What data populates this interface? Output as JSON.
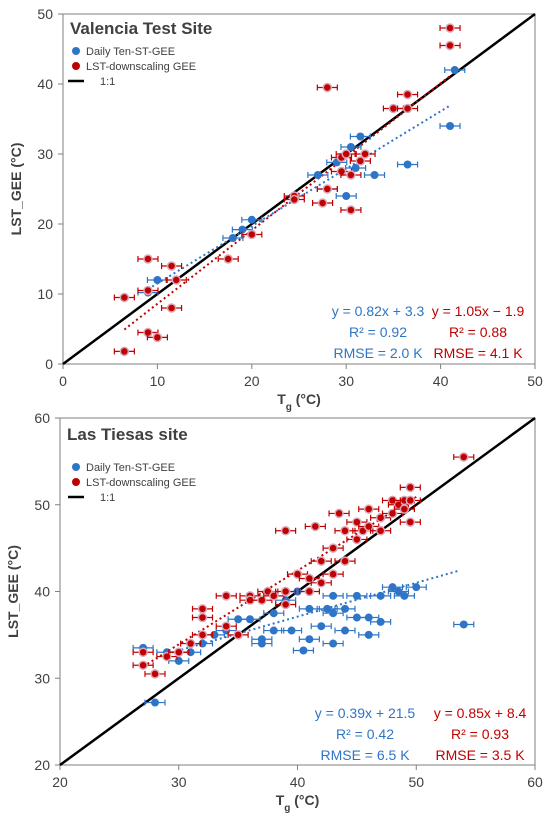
{
  "chart_data": [
    {
      "type": "scatter",
      "title": "Valencia Test Site",
      "xlabel": "T",
      "xlabel_sub": "g",
      "xlabel_unit": " (°C)",
      "ylabel": "LST_GEE (°C)",
      "xlim": [
        0,
        50
      ],
      "ylim": [
        0,
        50
      ],
      "xticks": [
        0,
        10,
        20,
        30,
        40,
        50
      ],
      "yticks": [
        0,
        10,
        20,
        30,
        40,
        50
      ],
      "legend_position": "top-left",
      "one_to_one_label": "1:1",
      "series": [
        {
          "name": "Daily Ten-ST-GEE",
          "color": "#2e75c8",
          "points": [
            [
              10,
              12
            ],
            [
              9,
              10.2
            ],
            [
              18,
              18
            ],
            [
              19,
              19.2
            ],
            [
              20,
              20.6
            ],
            [
              27,
              27
            ],
            [
              28,
              25
            ],
            [
              29,
              28.8
            ],
            [
              30,
              24
            ],
            [
              30.5,
              31
            ],
            [
              31,
              28
            ],
            [
              31.5,
              32.5
            ],
            [
              33,
              27
            ],
            [
              36.5,
              28.5
            ],
            [
              41,
              34
            ],
            [
              41.5,
              42
            ]
          ],
          "fit": {
            "slope": 0.82,
            "intercept": 3.3,
            "x_range": [
              9,
              41
            ]
          }
        },
        {
          "name": "LST-downscaling GEE",
          "color": "#c00000",
          "points": [
            [
              6.5,
              9.5
            ],
            [
              6.5,
              1.8
            ],
            [
              9,
              15
            ],
            [
              9,
              10.5
            ],
            [
              9,
              4.5
            ],
            [
              10,
              3.8
            ],
            [
              11.5,
              14
            ],
            [
              11.5,
              8
            ],
            [
              12,
              12
            ],
            [
              17.5,
              15
            ],
            [
              20,
              18.5
            ],
            [
              24.5,
              24
            ],
            [
              24.5,
              23.5
            ],
            [
              27.5,
              23
            ],
            [
              28,
              39.5
            ],
            [
              28,
              25
            ],
            [
              29.5,
              29.5
            ],
            [
              29.5,
              27.5
            ],
            [
              30,
              30
            ],
            [
              30.5,
              22
            ],
            [
              30.5,
              27
            ],
            [
              31.5,
              29
            ],
            [
              32,
              30
            ],
            [
              35,
              36.5
            ],
            [
              36.5,
              36.5
            ],
            [
              36.5,
              38.5
            ],
            [
              41,
              45.5
            ],
            [
              41,
              48
            ]
          ],
          "fit": {
            "slope": 1.05,
            "intercept": -1.9,
            "x_range": [
              6.5,
              41
            ]
          }
        }
      ],
      "stats": [
        {
          "eq": "y = 0.82x + 3.3",
          "r2": "R² = 0.92",
          "rmse": "RMSE = 2.0 K",
          "color": "#2e75c8"
        },
        {
          "eq": "y = 1.05x − 1.9",
          "r2": "R² = 0.88",
          "rmse": "RMSE = 4.1 K",
          "color": "#c00000"
        }
      ]
    },
    {
      "type": "scatter",
      "title": "Las Tiesas site",
      "xlabel": "T",
      "xlabel_sub": "g",
      "xlabel_unit": " (°C)",
      "ylabel": "LST_GEE (°C)",
      "xlim": [
        20,
        60
      ],
      "ylim": [
        20,
        60
      ],
      "xticks": [
        20,
        30,
        40,
        50,
        60
      ],
      "yticks": [
        20,
        30,
        40,
        50,
        60
      ],
      "legend_position": "top-left",
      "one_to_one_label": "1:1",
      "series": [
        {
          "name": "Daily Ten-ST-GEE",
          "color": "#2e75c8",
          "points": [
            [
              27,
              33.5
            ],
            [
              28,
              27.2
            ],
            [
              29,
              33
            ],
            [
              30,
              32
            ],
            [
              31,
              33
            ],
            [
              32,
              34
            ],
            [
              33,
              35
            ],
            [
              34,
              35.5
            ],
            [
              35,
              36.8
            ],
            [
              36,
              36.8
            ],
            [
              37,
              34.5
            ],
            [
              37,
              34
            ],
            [
              38,
              35.5
            ],
            [
              38,
              37.5
            ],
            [
              39,
              39
            ],
            [
              39.5,
              35.5
            ],
            [
              40,
              40
            ],
            [
              40.5,
              33.2
            ],
            [
              41,
              38
            ],
            [
              41,
              34.5
            ],
            [
              42,
              36
            ],
            [
              42.5,
              38
            ],
            [
              43,
              34
            ],
            [
              43,
              37.5
            ],
            [
              43,
              39.5
            ],
            [
              44,
              35.5
            ],
            [
              44,
              38
            ],
            [
              45,
              39.5
            ],
            [
              45,
              37
            ],
            [
              46,
              37
            ],
            [
              46,
              35
            ],
            [
              47,
              39.5
            ],
            [
              47,
              36.5
            ],
            [
              48,
              40.5
            ],
            [
              48.5,
              40
            ],
            [
              49,
              39.5
            ],
            [
              50,
              40.5
            ],
            [
              54,
              36.2
            ]
          ],
          "fit": {
            "slope": 0.39,
            "intercept": 21.5,
            "x_range": [
              29,
              53.5
            ]
          }
        },
        {
          "name": "LST-downscaling GEE",
          "color": "#c00000",
          "points": [
            [
              27,
              31.5
            ],
            [
              27,
              33
            ],
            [
              28,
              30.5
            ],
            [
              29,
              32.5
            ],
            [
              30,
              33
            ],
            [
              31,
              34
            ],
            [
              32,
              35
            ],
            [
              32,
              37
            ],
            [
              32,
              38
            ],
            [
              34,
              39.5
            ],
            [
              34,
              36
            ],
            [
              35,
              35
            ],
            [
              36,
              39.5
            ],
            [
              36,
              39
            ],
            [
              37,
              39
            ],
            [
              37.5,
              40
            ],
            [
              38,
              39.5
            ],
            [
              39,
              38.5
            ],
            [
              39,
              40
            ],
            [
              39,
              47
            ],
            [
              40,
              42
            ],
            [
              41,
              40
            ],
            [
              41,
              41.5
            ],
            [
              41.5,
              47.5
            ],
            [
              42,
              43.5
            ],
            [
              42,
              41
            ],
            [
              43,
              45
            ],
            [
              43,
              42
            ],
            [
              43.5,
              49
            ],
            [
              44,
              43.5
            ],
            [
              44,
              47
            ],
            [
              45,
              48
            ],
            [
              45,
              46
            ],
            [
              45.5,
              47
            ],
            [
              46,
              49.5
            ],
            [
              46,
              47.5
            ],
            [
              47,
              47
            ],
            [
              47,
              48.5
            ],
            [
              48,
              49
            ],
            [
              48,
              50.5
            ],
            [
              48.5,
              50
            ],
            [
              49,
              50.5
            ],
            [
              49,
              49.5
            ],
            [
              49.5,
              52
            ],
            [
              49.5,
              48
            ],
            [
              49.5,
              50.5
            ],
            [
              54,
              55.5
            ]
          ],
          "fit": {
            "slope": 0.85,
            "intercept": 8.4,
            "x_range": [
              27,
              50
            ]
          }
        }
      ],
      "stats": [
        {
          "eq": "y = 0.39x + 21.5",
          "r2": "R² = 0.42",
          "rmse": "RMSE = 6.5 K",
          "color": "#2e75c8"
        },
        {
          "eq": "y = 0.85x + 8.4",
          "r2": "R² = 0.93",
          "rmse": "RMSE = 3.5 K",
          "color": "#c00000"
        }
      ]
    }
  ]
}
